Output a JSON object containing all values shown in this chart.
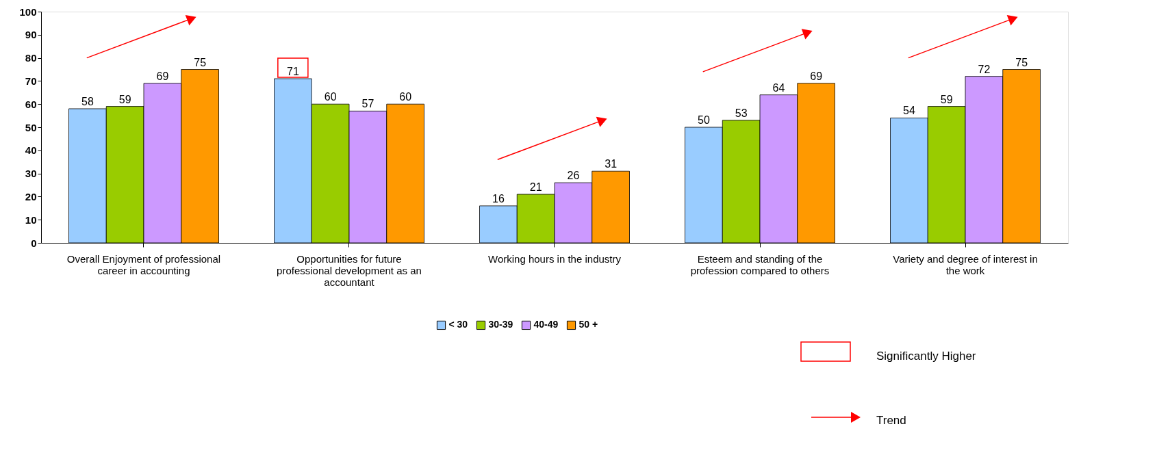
{
  "chart_data": {
    "type": "bar",
    "categories": [
      "Overall Enjoyment of professional career in accounting",
      "Opportunities for future professional development as an accountant",
      "Working hours in the industry",
      "Esteem and standing of the profession compared to others",
      "Variety and degree of interest in the work"
    ],
    "series": [
      {
        "name": "< 30",
        "color": "#99ccff",
        "values": [
          58,
          71,
          16,
          50,
          54
        ]
      },
      {
        "name": "30-39",
        "color": "#99cc00",
        "values": [
          59,
          60,
          21,
          53,
          59
        ]
      },
      {
        "name": "40-49",
        "color": "#cc99ff",
        "values": [
          69,
          57,
          26,
          64,
          72
        ]
      },
      {
        "name": "50 +",
        "color": "#ff9900",
        "values": [
          75,
          60,
          31,
          69,
          75
        ]
      }
    ],
    "ylim": [
      0,
      100
    ],
    "yticks": [
      0,
      10,
      20,
      30,
      40,
      50,
      60,
      70,
      80,
      90,
      100
    ],
    "grid": false,
    "legend": "bottom",
    "data_labels": true,
    "annotations": [
      "Significantly Higher",
      "Trend"
    ]
  }
}
